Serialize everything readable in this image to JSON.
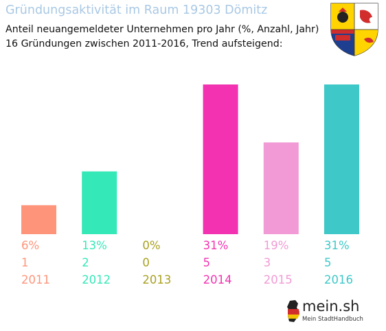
{
  "title": "Gründungsaktivität im Raum 19303 Dömitz",
  "subtitle_line1": "Anteil neuangemeldeter Unternehmen pro Jahr (%, Anzahl, Jahr)",
  "subtitle_line2": "16 Gründungen zwischen 2011-2016, Trend aufsteigend:",
  "chart_data": {
    "type": "bar",
    "title": "Gründungsaktivität im Raum 19303 Dömitz",
    "subtitle": "Anteil neuangemeldeter Unternehmen pro Jahr (%, Anzahl, Jahr)",
    "categories": [
      "2011",
      "2012",
      "2013",
      "2014",
      "2015",
      "2016"
    ],
    "percent_labels": [
      "6%",
      "13%",
      "0%",
      "31%",
      "19%",
      "31%"
    ],
    "counts": [
      1,
      2,
      0,
      5,
      3,
      5
    ],
    "values": [
      6,
      13,
      0,
      31,
      19,
      31
    ],
    "colors": [
      "#fe957a",
      "#35e8b7",
      "#a8a020",
      "#f232b1",
      "#f19ad5",
      "#3ec8c8"
    ],
    "ylim": [
      0,
      31
    ],
    "grid": false,
    "legend": "none"
  },
  "logo": {
    "name": "mein.sh",
    "tagline": "Mein StadtHandbuch"
  },
  "crest_icon": "coat-of-arms-mecklenburg-vorpommern-icon"
}
